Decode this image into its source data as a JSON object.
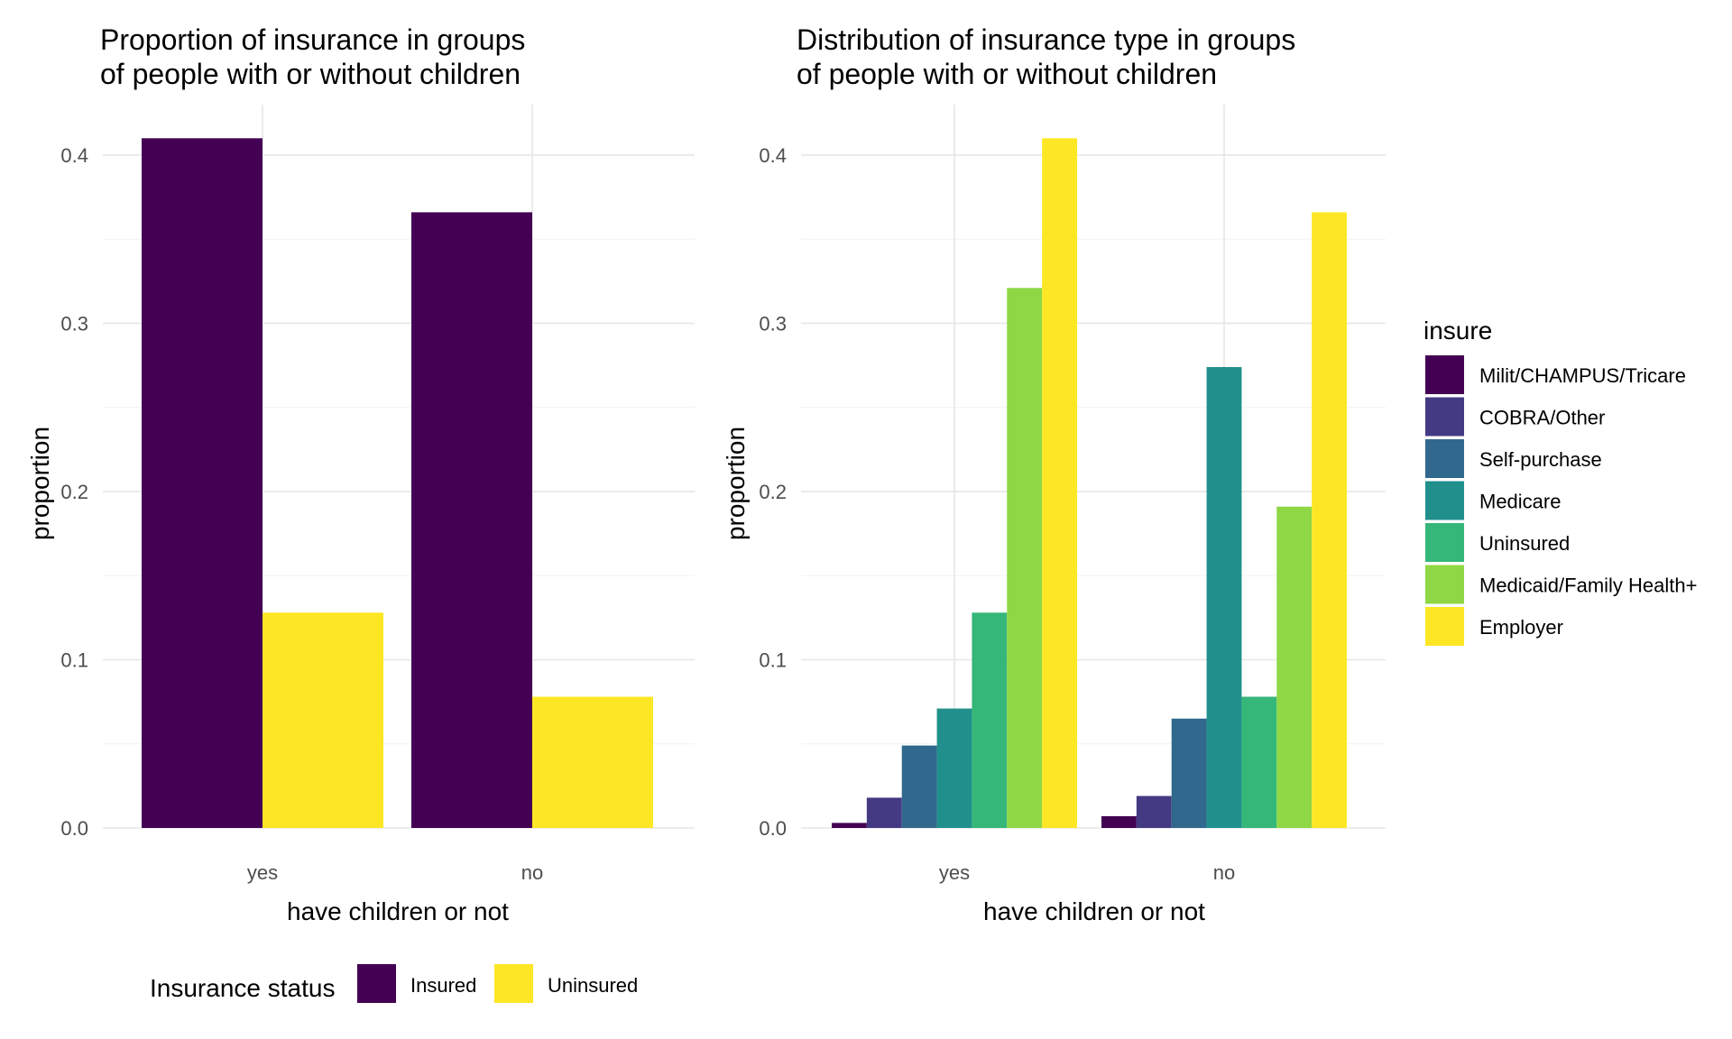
{
  "chart_data": [
    {
      "type": "bar",
      "title": [
        "Proportion of insurance in groups",
        "of people with or without children"
      ],
      "xlabel": "have children or not",
      "ylabel": "proportion",
      "categories": [
        "yes",
        "no"
      ],
      "ylim": [
        0,
        0.43
      ],
      "yticks": [
        0.0,
        0.1,
        0.2,
        0.3,
        0.4
      ],
      "ytick_labels": [
        "0.0",
        "0.1",
        "0.2",
        "0.3",
        "0.4"
      ],
      "grid": true,
      "legend": {
        "title": "Insurance status",
        "position": "bottom"
      },
      "series": [
        {
          "name": "Insured",
          "color": "#440154",
          "values": [
            0.41,
            0.366
          ]
        },
        {
          "name": "Uninsured",
          "color": "#FDE725",
          "values": [
            0.128,
            0.078
          ]
        }
      ]
    },
    {
      "type": "bar",
      "title": [
        "Distribution of insurance type in groups",
        "of people with or without children"
      ],
      "xlabel": "have children or not",
      "ylabel": "proportion",
      "categories": [
        "yes",
        "no"
      ],
      "ylim": [
        0,
        0.43
      ],
      "yticks": [
        0.0,
        0.1,
        0.2,
        0.3,
        0.4
      ],
      "ytick_labels": [
        "0.0",
        "0.1",
        "0.2",
        "0.3",
        "0.4"
      ],
      "grid": true,
      "legend": {
        "title": "insure",
        "position": "right"
      },
      "series": [
        {
          "name": "Milit/CHAMPUS/Tricare",
          "color": "#440154",
          "values": [
            0.003,
            0.007
          ]
        },
        {
          "name": "COBRA/Other",
          "color": "#443A83",
          "values": [
            0.018,
            0.019
          ]
        },
        {
          "name": "Self-purchase",
          "color": "#31688E",
          "values": [
            0.049,
            0.065
          ]
        },
        {
          "name": "Medicare",
          "color": "#21908C",
          "values": [
            0.071,
            0.274
          ]
        },
        {
          "name": "Uninsured",
          "color": "#35B779",
          "values": [
            0.128,
            0.078
          ]
        },
        {
          "name": "Medicaid/Family Health+",
          "color": "#8FD744",
          "values": [
            0.321,
            0.191
          ]
        },
        {
          "name": "Employer",
          "color": "#FDE725",
          "values": [
            0.41,
            0.366
          ]
        }
      ]
    }
  ]
}
